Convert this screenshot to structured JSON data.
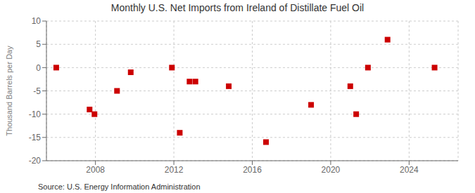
{
  "chart_data": {
    "type": "scatter",
    "title": "Monthly U.S. Net Imports from Ireland of Distillate Fuel Oil",
    "ylabel": "Thousand Barrels per Day",
    "annotation": "Source: U.S. Energy Information Administration",
    "x": [
      2006.0,
      2007.7,
      2007.95,
      2009.1,
      2009.8,
      2011.9,
      2012.3,
      2012.8,
      2013.1,
      2014.8,
      2016.7,
      2019.0,
      2021.0,
      2021.3,
      2021.9,
      2022.9,
      2025.3
    ],
    "values": [
      0,
      -9,
      -10,
      -5,
      -1,
      0,
      -14,
      -3,
      -3,
      -4,
      -16,
      -8,
      -4,
      -10,
      0,
      6,
      0
    ],
    "color": "#cc0000",
    "marker": "square",
    "xlim": [
      2005.5,
      2026.5
    ],
    "ylim": [
      -20,
      10
    ],
    "xticks": [
      2008,
      2012,
      2016,
      2020,
      2024
    ],
    "yticks": [
      -20,
      -15,
      -10,
      -5,
      0,
      5,
      10
    ],
    "grid": true
  }
}
